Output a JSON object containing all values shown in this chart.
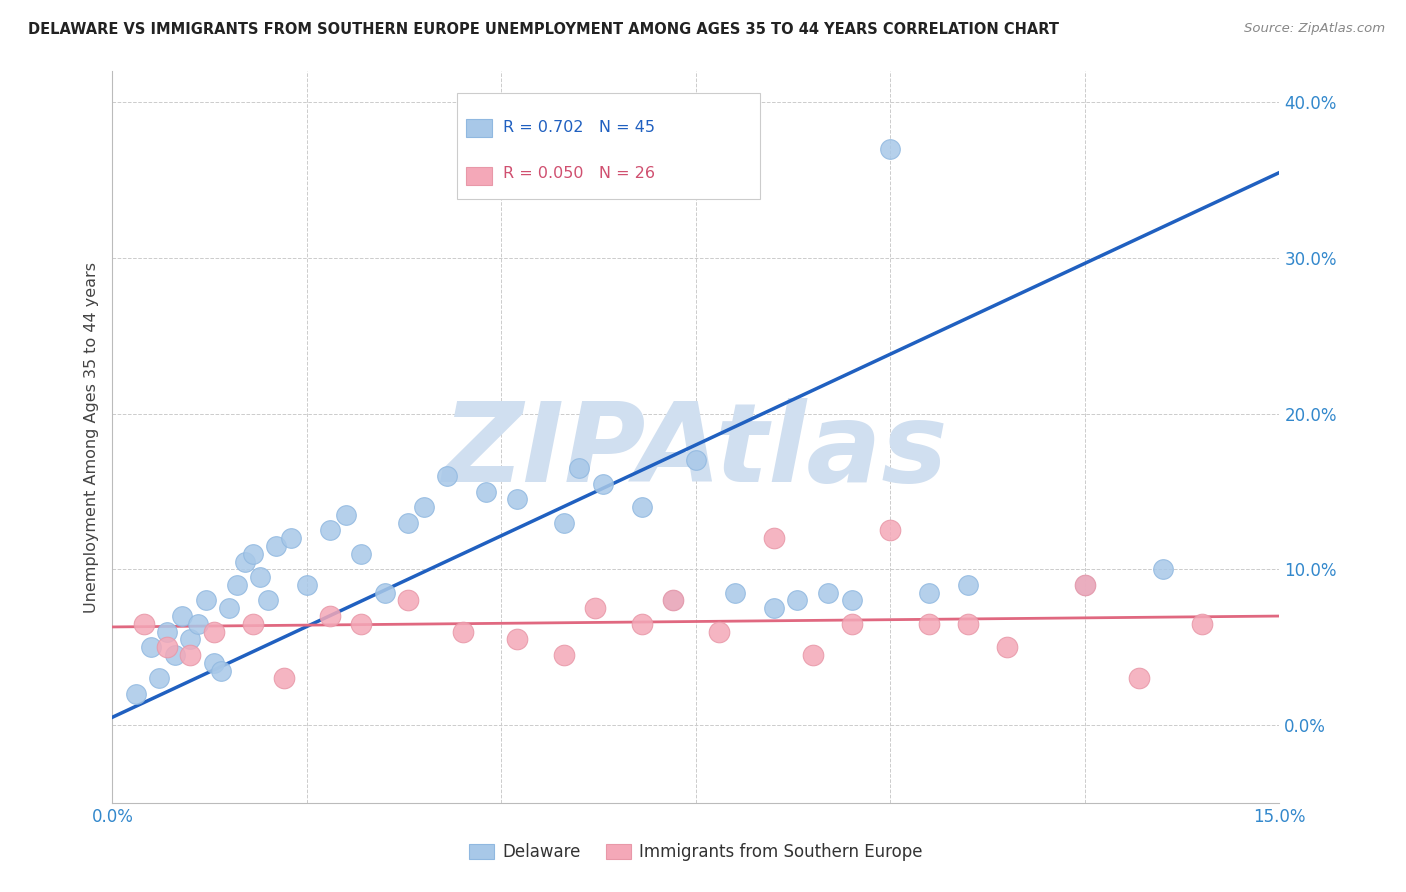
{
  "title": "DELAWARE VS IMMIGRANTS FROM SOUTHERN EUROPE UNEMPLOYMENT AMONG AGES 35 TO 44 YEARS CORRELATION CHART",
  "source_text": "Source: ZipAtlas.com",
  "ylabel": "Unemployment Among Ages 35 to 44 years",
  "xlim": [
    0.0,
    15.0
  ],
  "ylim": [
    -5.0,
    42.0
  ],
  "ytick_values": [
    0,
    10,
    20,
    30,
    40
  ],
  "xtick_values": [
    0,
    2.5,
    5.0,
    7.5,
    10.0,
    12.5,
    15.0
  ],
  "legend_blue_label": "Delaware",
  "legend_pink_label": "Immigrants from Southern Europe",
  "R_blue": 0.702,
  "N_blue": 45,
  "R_pink": 0.05,
  "N_pink": 26,
  "blue_color": "#A8C8E8",
  "blue_edge_color": "#90B8E0",
  "blue_line_color": "#2060C0",
  "pink_color": "#F4A8B8",
  "pink_edge_color": "#E898A8",
  "pink_line_color": "#E06880",
  "watermark_color": "#D0DFF0",
  "background_color": "#FFFFFF",
  "blue_scatter_x": [
    0.3,
    0.5,
    0.6,
    0.7,
    0.8,
    0.9,
    1.0,
    1.1,
    1.2,
    1.3,
    1.4,
    1.5,
    1.6,
    1.7,
    1.8,
    1.9,
    2.0,
    2.1,
    2.3,
    2.5,
    2.8,
    3.0,
    3.2,
    3.5,
    3.8,
    4.0,
    4.3,
    4.8,
    5.2,
    5.8,
    6.0,
    6.3,
    6.8,
    7.2,
    7.5,
    8.0,
    8.5,
    8.8,
    9.2,
    9.5,
    10.0,
    10.5,
    11.0,
    12.5,
    13.5
  ],
  "blue_scatter_y": [
    2.0,
    5.0,
    3.0,
    6.0,
    4.5,
    7.0,
    5.5,
    6.5,
    8.0,
    4.0,
    3.5,
    7.5,
    9.0,
    10.5,
    11.0,
    9.5,
    8.0,
    11.5,
    12.0,
    9.0,
    12.5,
    13.5,
    11.0,
    8.5,
    13.0,
    14.0,
    16.0,
    15.0,
    14.5,
    13.0,
    16.5,
    15.5,
    14.0,
    8.0,
    17.0,
    8.5,
    7.5,
    8.0,
    8.5,
    8.0,
    37.0,
    8.5,
    9.0,
    9.0,
    10.0
  ],
  "pink_scatter_x": [
    0.4,
    0.7,
    1.0,
    1.3,
    1.8,
    2.2,
    2.8,
    3.2,
    3.8,
    4.5,
    5.2,
    5.8,
    6.2,
    6.8,
    7.2,
    7.8,
    8.5,
    9.0,
    9.5,
    10.0,
    10.5,
    11.0,
    11.5,
    12.5,
    13.2,
    14.0
  ],
  "pink_scatter_y": [
    6.5,
    5.0,
    4.5,
    6.0,
    6.5,
    3.0,
    7.0,
    6.5,
    8.0,
    6.0,
    5.5,
    4.5,
    7.5,
    6.5,
    8.0,
    6.0,
    12.0,
    4.5,
    6.5,
    12.5,
    6.5,
    6.5,
    5.0,
    9.0,
    3.0,
    6.5
  ],
  "blue_line_x": [
    0.0,
    15.0
  ],
  "blue_line_y": [
    0.5,
    35.5
  ],
  "pink_line_x": [
    0.0,
    15.0
  ],
  "pink_line_y": [
    6.3,
    7.0
  ],
  "grid_color": "#CCCCCC",
  "watermark_text": "ZIPAtlas"
}
